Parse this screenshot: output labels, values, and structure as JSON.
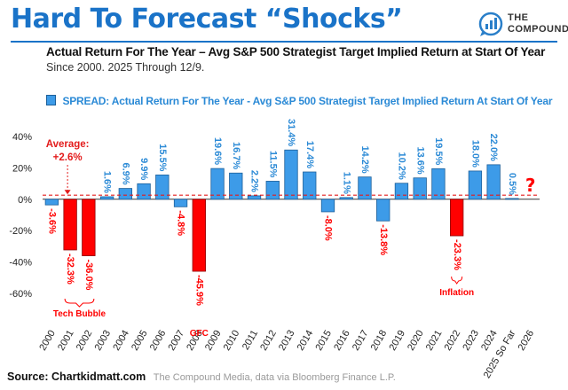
{
  "header": {
    "title": "Hard To Forecast “Shocks”",
    "subtitle": "Actual Return For The Year – Avg S&P 500 Strategist Target Implied Return at Start Of Year",
    "since": "Since 2000. 2025 Through 12/9."
  },
  "brand": {
    "line1": "THE",
    "line2": "COMPOUND",
    "icon": "chart-bubble-icon",
    "color": "#2a7fc9"
  },
  "legend": {
    "label": "SPREAD: Actual Return For The Year - Avg S&P 500 Strategist Target Implied Return At Start Of Year"
  },
  "annotations": {
    "average_label": "Average:",
    "average_value": "+2.6%",
    "tech_bubble": "Tech Bubble",
    "gfc": "GFC",
    "inflation": "Inflation",
    "question_mark": "?"
  },
  "colors": {
    "positive": "#3d9be8",
    "negative": "#ff0000",
    "label_positive": "#2b8ad6",
    "label_negative": "#ff0000",
    "average_line": "#e31b1b",
    "zero_line": "#333333"
  },
  "chart_data": {
    "type": "bar",
    "categories": [
      "2000",
      "2001",
      "2002",
      "2003",
      "2004",
      "2005",
      "2006",
      "2007",
      "2008",
      "2009",
      "2010",
      "2011",
      "2012",
      "2013",
      "2014",
      "2015",
      "2016",
      "2017",
      "2018",
      "2019",
      "2020",
      "2021",
      "2022",
      "2023",
      "2024",
      "2025 So Far",
      "2026"
    ],
    "values": [
      -3.6,
      -32.3,
      -36.0,
      1.6,
      6.9,
      9.9,
      15.5,
      -4.8,
      -45.9,
      19.6,
      16.7,
      2.2,
      11.5,
      31.4,
      17.4,
      -8.0,
      1.1,
      14.2,
      -13.8,
      10.2,
      13.6,
      19.5,
      -23.3,
      18.0,
      22.0,
      0.5,
      null
    ],
    "labels": [
      "-3.6%",
      "-32.3%",
      "-36.0%",
      "1.6%",
      "6.9%",
      "9.9%",
      "15.5%",
      "-4.8%",
      "-45.9%",
      "19.6%",
      "16.7%",
      "2.2%",
      "11.5%",
      "31.4%",
      "17.4%",
      "-8.0%",
      "1.1%",
      "14.2%",
      "-13.8%",
      "10.2%",
      "13.6%",
      "19.5%",
      "-23.3%",
      "18.0%",
      "22.0%",
      "0.5%",
      ""
    ],
    "label_is_negative": [
      true,
      true,
      true,
      false,
      false,
      false,
      false,
      true,
      true,
      false,
      false,
      false,
      false,
      false,
      false,
      true,
      false,
      false,
      true,
      false,
      false,
      false,
      true,
      false,
      false,
      false,
      false
    ],
    "red_bars": [
      1,
      2,
      8,
      22
    ],
    "yticks": [
      "40%",
      "20%",
      "0%",
      "-20%",
      "-40%",
      "-60%"
    ],
    "ytick_values": [
      40,
      20,
      0,
      -20,
      -40,
      -60
    ],
    "ylim": [
      -60,
      40
    ],
    "average": 2.6,
    "title": "SPREAD: Actual Return For The Year - Avg S&P 500 Strategist Target Implied Return At Start Of Year",
    "xlabel": "",
    "ylabel": "",
    "grid": false,
    "legend_position": "top"
  },
  "source": {
    "bold": "Source: Chartkidmatt.com",
    "rest": "The Compound Media, data via Bloomberg Finance L.P."
  }
}
